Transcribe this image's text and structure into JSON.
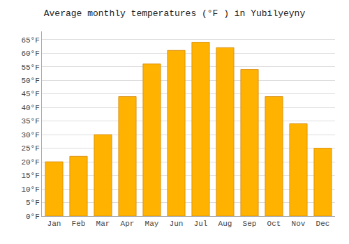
{
  "chart_data": {
    "type": "bar",
    "title": "Average monthly temperatures (°F ) in Yubilyeyny",
    "categories": [
      "Jan",
      "Feb",
      "Mar",
      "Apr",
      "May",
      "Jun",
      "Jul",
      "Aug",
      "Sep",
      "Oct",
      "Nov",
      "Dec"
    ],
    "values": [
      20,
      22,
      30,
      44,
      56,
      61,
      64,
      62,
      54,
      44,
      34,
      25
    ],
    "color": "#FFB300",
    "ylim": [
      0,
      68
    ],
    "yticks": [
      {
        "value": 0,
        "label": "0°F"
      },
      {
        "value": 5,
        "label": "5°F"
      },
      {
        "value": 10,
        "label": "10°F"
      },
      {
        "value": 15,
        "label": "15°F"
      },
      {
        "value": 20,
        "label": "20°F"
      },
      {
        "value": 25,
        "label": "25°F"
      },
      {
        "value": 30,
        "label": "30°F"
      },
      {
        "value": 35,
        "label": "35°F"
      },
      {
        "value": 40,
        "label": "40°F"
      },
      {
        "value": 45,
        "label": "45°F"
      },
      {
        "value": 50,
        "label": "50°F"
      },
      {
        "value": 55,
        "label": "55°F"
      },
      {
        "value": 60,
        "label": "60°F"
      },
      {
        "value": 65,
        "label": "65°F"
      }
    ],
    "grid": true
  }
}
